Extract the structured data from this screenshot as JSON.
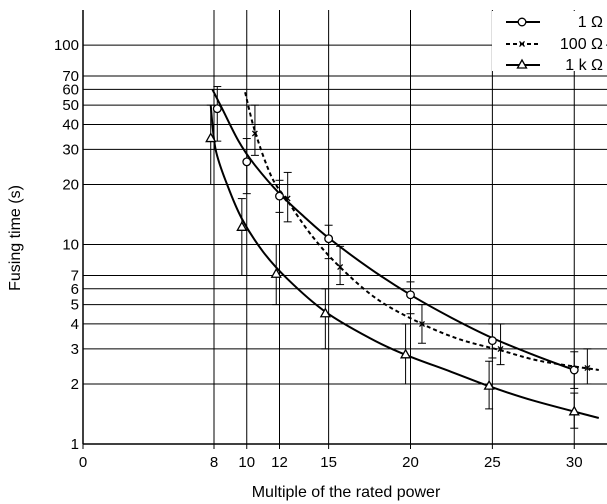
{
  "chart_data": {
    "type": "line",
    "title": "",
    "xlabel": "Multiple of the rated power",
    "ylabel": "Fusing time (s)",
    "x_scale": "linear",
    "y_scale": "log",
    "xlim": [
      0,
      32
    ],
    "ylim": [
      1,
      150
    ],
    "x_ticks": [
      0,
      8,
      10,
      12,
      15,
      20,
      25,
      30
    ],
    "y_ticks": [
      1,
      2,
      3,
      4,
      5,
      6,
      7,
      10,
      20,
      30,
      40,
      50,
      60,
      70,
      100
    ],
    "x_tick_labels": [
      "0",
      "8",
      "10",
      "12",
      "15",
      "20",
      "25",
      "30"
    ],
    "y_tick_labels": [
      "1",
      "2",
      "3",
      "4",
      "5",
      "6",
      "7",
      "10",
      "20",
      "30",
      "40",
      "50",
      "60",
      "70",
      "100"
    ],
    "grid": true,
    "legend_position": "top-right",
    "series": [
      {
        "name": "1 Ω",
        "marker": "circle",
        "line_style": "solid",
        "points": [
          {
            "x": 8.2,
            "y": 48,
            "lo": 33,
            "hi": 62
          },
          {
            "x": 10,
            "y": 26,
            "lo": 18,
            "hi": 34
          },
          {
            "x": 12,
            "y": 17.5,
            "lo": 14.5,
            "hi": 21
          },
          {
            "x": 15,
            "y": 10.7,
            "lo": 8.5,
            "hi": 12.5
          },
          {
            "x": 20,
            "y": 5.6,
            "lo": 4.5,
            "hi": 6.5
          },
          {
            "x": 25,
            "y": 3.3,
            "lo": 2.7,
            "hi": 4.0
          },
          {
            "x": 30,
            "y": 2.35,
            "lo": 1.9,
            "hi": 2.9
          }
        ],
        "curve": [
          [
            7.9,
            60
          ],
          [
            8.5,
            48
          ],
          [
            9.5,
            33
          ],
          [
            10.5,
            25
          ],
          [
            12,
            18
          ],
          [
            13.5,
            13.8
          ],
          [
            15,
            10.8
          ],
          [
            17.5,
            7.6
          ],
          [
            20,
            5.6
          ],
          [
            22.5,
            4.3
          ],
          [
            25,
            3.4
          ],
          [
            27.5,
            2.8
          ],
          [
            30,
            2.35
          ]
        ]
      },
      {
        "name": "100 Ω",
        "marker": "x",
        "line_style": "dashed",
        "points": [
          {
            "x": 10.5,
            "y": 36,
            "lo": 28,
            "hi": 50
          },
          {
            "x": 12.5,
            "y": 17,
            "lo": 13,
            "hi": 23
          },
          {
            "x": 15.7,
            "y": 7.7,
            "lo": 6.3,
            "hi": 9.8
          },
          {
            "x": 20.7,
            "y": 4,
            "lo": 3.2,
            "hi": 5.0
          },
          {
            "x": 25.5,
            "y": 3,
            "lo": 2.5,
            "hi": 4.0
          },
          {
            "x": 30.8,
            "y": 2.4,
            "lo": 2.0,
            "hi": 3.0
          }
        ],
        "curve": [
          [
            9.9,
            58
          ],
          [
            10.5,
            37
          ],
          [
            11.5,
            22
          ],
          [
            12.5,
            16.5
          ],
          [
            14,
            11
          ],
          [
            15.7,
            7.7
          ],
          [
            18,
            5.3
          ],
          [
            20.7,
            4.0
          ],
          [
            23,
            3.35
          ],
          [
            25.5,
            2.95
          ],
          [
            28,
            2.6
          ],
          [
            31.5,
            2.35
          ]
        ]
      },
      {
        "name": "1 kΩ",
        "marker": "triangle",
        "line_style": "solid",
        "points": [
          {
            "x": 7.8,
            "y": 34,
            "lo": 20,
            "hi": 50
          },
          {
            "x": 9.7,
            "y": 12.2,
            "lo": 7,
            "hi": 17
          },
          {
            "x": 11.8,
            "y": 7.1,
            "lo": 5,
            "hi": 10
          },
          {
            "x": 14.8,
            "y": 4.5,
            "lo": 3,
            "hi": 6
          },
          {
            "x": 19.7,
            "y": 2.8,
            "lo": 2,
            "hi": 4
          },
          {
            "x": 24.8,
            "y": 1.95,
            "lo": 1.5,
            "hi": 2.6
          },
          {
            "x": 30,
            "y": 1.45,
            "lo": 1.2,
            "hi": 1.8
          }
        ],
        "curve": [
          [
            7.8,
            50
          ],
          [
            8.1,
            30
          ],
          [
            8.8,
            20
          ],
          [
            9.7,
            13.5
          ],
          [
            11,
            9.2
          ],
          [
            12.5,
            6.7
          ],
          [
            14.8,
            4.6
          ],
          [
            17.5,
            3.4
          ],
          [
            19.7,
            2.8
          ],
          [
            22.5,
            2.3
          ],
          [
            24.8,
            1.95
          ],
          [
            27.5,
            1.65
          ],
          [
            31.5,
            1.35
          ]
        ]
      }
    ]
  },
  "legend": {
    "entries": [
      "1 Ω",
      "100 Ω",
      "1 k Ω"
    ]
  }
}
